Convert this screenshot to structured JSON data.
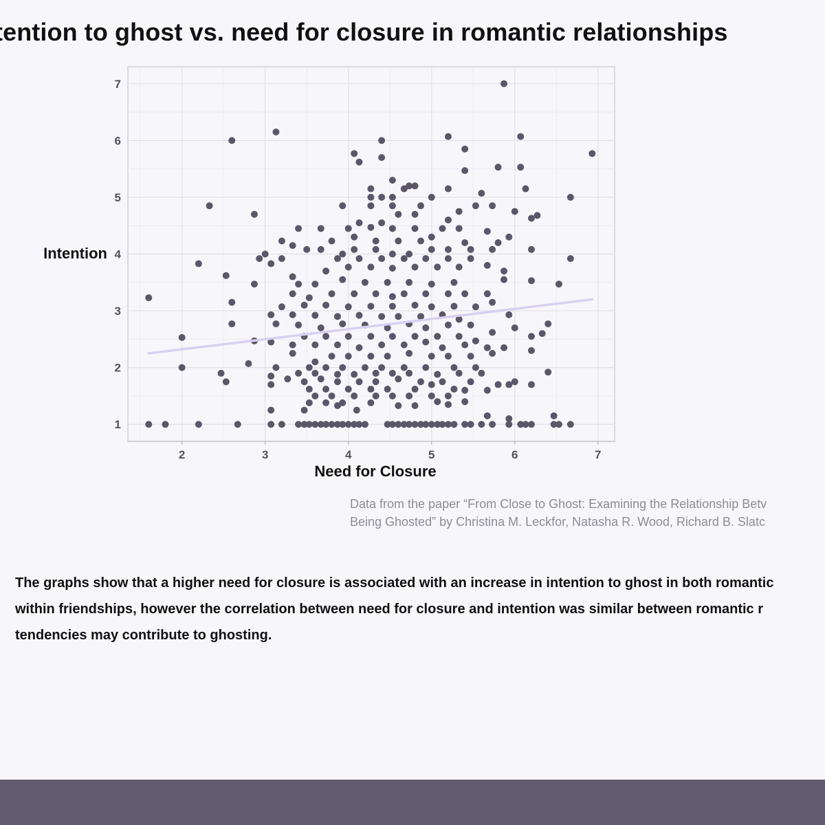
{
  "title": "tention to ghost vs. need for closure in romantic relationships",
  "source": {
    "line1": "Data from the paper “From Close to Ghost: Examining the Relationship Betv",
    "line2": "Being Ghosted” by Christina M. Leckfor, Natasha R. Wood, Richard B. Slatc"
  },
  "summary": {
    "line1": "The graphs show that a higher need for closure is associated with an increase in intention to ghost in both romantic",
    "line2": "within friendships, however the correlation between need for closure and intention was similar between romantic r",
    "line3": "tendencies may contribute to ghosting."
  },
  "colors": {
    "background": "#f7f6fb",
    "point": "#5b5768",
    "trend": "#d8d0f2",
    "footer": "#615c6f"
  },
  "chart_data": {
    "type": "scatter",
    "xlabel": "Need for Closure",
    "ylabel": "Intention",
    "xlim": [
      1.35,
      7.2
    ],
    "ylim": [
      0.7,
      7.3
    ],
    "x_ticks": [
      2,
      3,
      4,
      5,
      6,
      7
    ],
    "y_ticks": [
      1,
      2,
      3,
      4,
      5,
      6,
      7
    ],
    "grid": true,
    "trend_line": {
      "x": [
        1.6,
        6.93
      ],
      "y": [
        2.25,
        3.2
      ]
    },
    "points": [
      [
        1.6,
        1.0
      ],
      [
        1.8,
        1.0
      ],
      [
        2.2,
        1.0
      ],
      [
        2.67,
        1.0
      ],
      [
        3.07,
        1.0
      ],
      [
        3.2,
        1.0
      ],
      [
        3.4,
        1.0
      ],
      [
        3.47,
        1.0
      ],
      [
        3.53,
        1.0
      ],
      [
        3.6,
        1.0
      ],
      [
        3.67,
        1.0
      ],
      [
        3.73,
        1.0
      ],
      [
        3.8,
        1.0
      ],
      [
        3.87,
        1.0
      ],
      [
        3.93,
        1.0
      ],
      [
        4.0,
        1.0
      ],
      [
        4.07,
        1.0
      ],
      [
        4.13,
        1.0
      ],
      [
        4.2,
        1.0
      ],
      [
        4.47,
        1.0
      ],
      [
        4.53,
        1.0
      ],
      [
        4.6,
        1.0
      ],
      [
        4.67,
        1.0
      ],
      [
        4.73,
        1.0
      ],
      [
        4.8,
        1.0
      ],
      [
        4.87,
        1.0
      ],
      [
        4.93,
        1.0
      ],
      [
        5.0,
        1.0
      ],
      [
        5.07,
        1.0
      ],
      [
        5.13,
        1.0
      ],
      [
        5.2,
        1.0
      ],
      [
        5.27,
        1.0
      ],
      [
        5.4,
        1.0
      ],
      [
        5.47,
        1.0
      ],
      [
        5.6,
        1.0
      ],
      [
        5.73,
        1.0
      ],
      [
        5.93,
        1.0
      ],
      [
        6.07,
        1.0
      ],
      [
        6.13,
        1.0
      ],
      [
        6.2,
        1.0
      ],
      [
        6.47,
        1.0
      ],
      [
        6.53,
        1.0
      ],
      [
        6.67,
        1.0
      ],
      [
        3.07,
        1.25
      ],
      [
        3.47,
        1.25
      ],
      [
        4.1,
        1.25
      ],
      [
        5.67,
        1.15
      ],
      [
        5.93,
        1.1
      ],
      [
        6.47,
        1.15
      ],
      [
        3.53,
        1.38
      ],
      [
        3.73,
        1.38
      ],
      [
        3.87,
        1.33
      ],
      [
        3.93,
        1.38
      ],
      [
        4.27,
        1.38
      ],
      [
        4.6,
        1.33
      ],
      [
        4.8,
        1.33
      ],
      [
        5.07,
        1.4
      ],
      [
        5.2,
        1.35
      ],
      [
        5.4,
        1.4
      ],
      [
        3.6,
        1.5
      ],
      [
        3.8,
        1.5
      ],
      [
        4.07,
        1.5
      ],
      [
        4.33,
        1.5
      ],
      [
        4.53,
        1.5
      ],
      [
        4.73,
        1.5
      ],
      [
        5.0,
        1.5
      ],
      [
        5.2,
        1.5
      ],
      [
        3.07,
        1.7
      ],
      [
        3.53,
        1.62
      ],
      [
        3.73,
        1.62
      ],
      [
        4.0,
        1.62
      ],
      [
        4.27,
        1.62
      ],
      [
        4.47,
        1.62
      ],
      [
        4.8,
        1.62
      ],
      [
        5.0,
        1.7
      ],
      [
        5.27,
        1.62
      ],
      [
        5.4,
        1.6
      ],
      [
        5.67,
        1.6
      ],
      [
        5.93,
        1.7
      ],
      [
        6.2,
        1.7
      ],
      [
        2.53,
        1.75
      ],
      [
        3.27,
        1.8
      ],
      [
        3.47,
        1.75
      ],
      [
        3.67,
        1.8
      ],
      [
        3.87,
        1.75
      ],
      [
        4.13,
        1.75
      ],
      [
        4.33,
        1.75
      ],
      [
        4.6,
        1.8
      ],
      [
        4.87,
        1.75
      ],
      [
        5.13,
        1.75
      ],
      [
        5.47,
        1.75
      ],
      [
        5.8,
        1.7
      ],
      [
        6.0,
        1.75
      ],
      [
        2.47,
        1.9
      ],
      [
        3.07,
        1.85
      ],
      [
        3.4,
        1.9
      ],
      [
        3.6,
        1.9
      ],
      [
        3.87,
        1.88
      ],
      [
        4.07,
        1.88
      ],
      [
        4.33,
        1.9
      ],
      [
        4.53,
        1.9
      ],
      [
        4.73,
        1.9
      ],
      [
        5.07,
        1.88
      ],
      [
        5.33,
        1.9
      ],
      [
        5.6,
        1.9
      ],
      [
        6.4,
        1.92
      ],
      [
        2.0,
        2.0
      ],
      [
        2.8,
        2.07
      ],
      [
        3.13,
        2.0
      ],
      [
        3.53,
        2.0
      ],
      [
        3.73,
        2.0
      ],
      [
        3.93,
        2.0
      ],
      [
        4.2,
        2.0
      ],
      [
        4.4,
        2.0
      ],
      [
        4.67,
        2.0
      ],
      [
        4.93,
        2.0
      ],
      [
        5.27,
        2.0
      ],
      [
        5.53,
        2.0
      ],
      [
        3.33,
        2.25
      ],
      [
        3.6,
        2.1
      ],
      [
        3.8,
        2.2
      ],
      [
        4.0,
        2.2
      ],
      [
        4.27,
        2.2
      ],
      [
        4.47,
        2.2
      ],
      [
        4.73,
        2.25
      ],
      [
        5.0,
        2.2
      ],
      [
        5.2,
        2.2
      ],
      [
        5.47,
        2.2
      ],
      [
        5.73,
        2.25
      ],
      [
        6.2,
        2.3
      ],
      [
        3.07,
        2.45
      ],
      [
        3.33,
        2.4
      ],
      [
        3.6,
        2.4
      ],
      [
        3.87,
        2.4
      ],
      [
        4.13,
        2.35
      ],
      [
        4.4,
        2.4
      ],
      [
        4.67,
        2.4
      ],
      [
        4.93,
        2.45
      ],
      [
        5.13,
        2.35
      ],
      [
        5.4,
        2.4
      ],
      [
        5.67,
        2.35
      ],
      [
        5.87,
        2.35
      ],
      [
        2.0,
        2.53
      ],
      [
        2.87,
        2.47
      ],
      [
        3.47,
        2.55
      ],
      [
        3.73,
        2.55
      ],
      [
        4.0,
        2.55
      ],
      [
        4.27,
        2.55
      ],
      [
        4.53,
        2.55
      ],
      [
        4.8,
        2.55
      ],
      [
        5.07,
        2.55
      ],
      [
        5.33,
        2.55
      ],
      [
        5.53,
        2.47
      ],
      [
        6.2,
        2.55
      ],
      [
        6.33,
        2.6
      ],
      [
        2.6,
        2.77
      ],
      [
        3.13,
        2.77
      ],
      [
        3.4,
        2.75
      ],
      [
        3.67,
        2.7
      ],
      [
        3.93,
        2.77
      ],
      [
        4.2,
        2.75
      ],
      [
        4.47,
        2.7
      ],
      [
        4.73,
        2.77
      ],
      [
        4.93,
        2.7
      ],
      [
        5.2,
        2.75
      ],
      [
        5.47,
        2.75
      ],
      [
        5.73,
        2.62
      ],
      [
        6.0,
        2.7
      ],
      [
        6.4,
        2.77
      ],
      [
        3.07,
        2.93
      ],
      [
        3.33,
        2.93
      ],
      [
        3.6,
        2.92
      ],
      [
        3.87,
        2.9
      ],
      [
        4.13,
        2.92
      ],
      [
        4.4,
        2.9
      ],
      [
        4.6,
        2.9
      ],
      [
        4.87,
        2.9
      ],
      [
        5.13,
        2.93
      ],
      [
        5.33,
        2.85
      ],
      [
        5.93,
        2.93
      ],
      [
        1.6,
        3.23
      ],
      [
        2.6,
        3.15
      ],
      [
        3.2,
        3.07
      ],
      [
        3.47,
        3.1
      ],
      [
        3.73,
        3.1
      ],
      [
        4.0,
        3.07
      ],
      [
        4.27,
        3.08
      ],
      [
        4.53,
        3.08
      ],
      [
        4.8,
        3.1
      ],
      [
        5.0,
        3.07
      ],
      [
        5.27,
        3.08
      ],
      [
        5.53,
        3.07
      ],
      [
        5.73,
        3.15
      ],
      [
        3.33,
        3.3
      ],
      [
        3.53,
        3.23
      ],
      [
        3.8,
        3.3
      ],
      [
        4.07,
        3.3
      ],
      [
        4.33,
        3.3
      ],
      [
        4.53,
        3.25
      ],
      [
        4.67,
        3.3
      ],
      [
        4.93,
        3.3
      ],
      [
        5.2,
        3.3
      ],
      [
        5.4,
        3.3
      ],
      [
        5.67,
        3.3
      ],
      [
        2.53,
        3.62
      ],
      [
        2.87,
        3.47
      ],
      [
        3.4,
        3.47
      ],
      [
        3.6,
        3.47
      ],
      [
        3.93,
        3.55
      ],
      [
        4.2,
        3.5
      ],
      [
        4.47,
        3.5
      ],
      [
        4.73,
        3.5
      ],
      [
        5.0,
        3.47
      ],
      [
        5.27,
        3.5
      ],
      [
        5.87,
        3.55
      ],
      [
        6.2,
        3.53
      ],
      [
        6.53,
        3.47
      ],
      [
        2.2,
        3.83
      ],
      [
        3.07,
        3.83
      ],
      [
        3.33,
        3.6
      ],
      [
        3.73,
        3.7
      ],
      [
        4.0,
        3.77
      ],
      [
        4.27,
        3.77
      ],
      [
        4.53,
        3.75
      ],
      [
        4.8,
        3.77
      ],
      [
        5.07,
        3.77
      ],
      [
        5.33,
        3.77
      ],
      [
        5.67,
        3.8
      ],
      [
        5.87,
        3.7
      ],
      [
        2.93,
        3.92
      ],
      [
        3.2,
        3.92
      ],
      [
        3.87,
        3.92
      ],
      [
        4.13,
        3.92
      ],
      [
        4.4,
        3.92
      ],
      [
        4.67,
        3.92
      ],
      [
        4.93,
        3.92
      ],
      [
        5.2,
        3.92
      ],
      [
        5.47,
        3.92
      ],
      [
        6.67,
        3.92
      ],
      [
        3.0,
        4.0
      ],
      [
        3.5,
        4.08
      ],
      [
        3.67,
        4.08
      ],
      [
        3.93,
        4.0
      ],
      [
        4.07,
        4.08
      ],
      [
        4.33,
        4.08
      ],
      [
        4.53,
        4.0
      ],
      [
        4.73,
        4.0
      ],
      [
        5.0,
        4.08
      ],
      [
        5.2,
        4.08
      ],
      [
        5.47,
        4.08
      ],
      [
        5.73,
        4.08
      ],
      [
        6.2,
        4.08
      ],
      [
        3.2,
        4.23
      ],
      [
        3.33,
        4.15
      ],
      [
        3.8,
        4.23
      ],
      [
        4.07,
        4.3
      ],
      [
        4.33,
        4.23
      ],
      [
        4.6,
        4.23
      ],
      [
        4.87,
        4.23
      ],
      [
        5.0,
        4.3
      ],
      [
        5.4,
        4.2
      ],
      [
        5.8,
        4.2
      ],
      [
        5.93,
        4.3
      ],
      [
        3.4,
        4.45
      ],
      [
        3.67,
        4.45
      ],
      [
        4.0,
        4.45
      ],
      [
        4.27,
        4.47
      ],
      [
        4.53,
        4.45
      ],
      [
        4.8,
        4.45
      ],
      [
        5.13,
        4.45
      ],
      [
        5.33,
        4.45
      ],
      [
        5.67,
        4.4
      ],
      [
        4.13,
        4.55
      ],
      [
        4.4,
        4.55
      ],
      [
        4.6,
        4.7
      ],
      [
        4.8,
        4.7
      ],
      [
        5.2,
        4.6
      ],
      [
        5.33,
        4.75
      ],
      [
        6.0,
        4.75
      ],
      [
        6.2,
        4.63
      ],
      [
        6.27,
        4.68
      ],
      [
        2.33,
        4.85
      ],
      [
        2.87,
        4.7
      ],
      [
        3.93,
        4.85
      ],
      [
        4.27,
        4.85
      ],
      [
        4.53,
        4.85
      ],
      [
        4.87,
        4.85
      ],
      [
        5.0,
        5.0
      ],
      [
        5.53,
        4.85
      ],
      [
        5.73,
        4.85
      ],
      [
        6.67,
        5.0
      ],
      [
        4.27,
        5.0
      ],
      [
        4.4,
        5.0
      ],
      [
        4.53,
        5.0
      ],
      [
        4.67,
        5.15
      ],
      [
        4.8,
        5.2
      ],
      [
        5.2,
        5.15
      ],
      [
        5.6,
        5.07
      ],
      [
        6.13,
        5.15
      ],
      [
        4.27,
        5.15
      ],
      [
        4.53,
        5.3
      ],
      [
        4.73,
        5.2
      ],
      [
        4.07,
        5.77
      ],
      [
        4.13,
        5.62
      ],
      [
        4.4,
        5.7
      ],
      [
        5.4,
        5.85
      ],
      [
        5.4,
        5.47
      ],
      [
        5.8,
        5.53
      ],
      [
        6.07,
        5.53
      ],
      [
        6.93,
        5.77
      ],
      [
        2.6,
        6.0
      ],
      [
        4.4,
        6.0
      ],
      [
        5.2,
        6.07
      ],
      [
        6.07,
        6.07
      ],
      [
        3.13,
        6.15
      ],
      [
        5.87,
        7.0
      ]
    ]
  }
}
